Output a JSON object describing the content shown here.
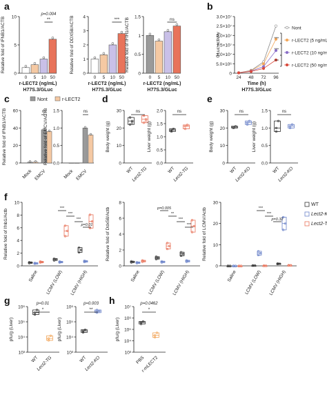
{
  "figure": {
    "panel_letters": [
      "a",
      "b",
      "c",
      "d",
      "e",
      "f",
      "g",
      "h"
    ]
  },
  "colors": {
    "white_fill": "#ffffff",
    "lavender": "#c9c0e8",
    "peach": "#f5c9a3",
    "orange_red": "#e8735a",
    "grey": "#9a9a9a",
    "blue_point": "#6a82c9",
    "red_point": "#d94a3c",
    "orange_point": "#f2a65a",
    "purple_point": "#8a6fc8",
    "box_red": "#e8735a",
    "box_blue": "#6a82c9",
    "box_orange": "#f2a65a"
  },
  "chart_data": [
    {
      "panel": "a",
      "type": "bar",
      "ylabel": "Relative fold of IFNB1/ACTB",
      "xlabel": "r-LECT2 (ng/mL)",
      "subtitle": "H77S.3/GLuc",
      "categories": [
        "0",
        "5",
        "10",
        "50"
      ],
      "values": [
        1.0,
        1.5,
        2.5,
        6.0
      ],
      "ylim": [
        0,
        10
      ],
      "yticks": [
        0,
        5,
        10
      ],
      "annotation_p": "p=0.004",
      "annotation_stars": "**"
    },
    {
      "panel": "a",
      "type": "bar",
      "ylabel": "Relative fold of DDX58/ACTB",
      "xlabel": "r-LECT2 (ng/mL)",
      "subtitle": "H77S.3/GLuc",
      "categories": [
        "0",
        "5",
        "10",
        "50"
      ],
      "values": [
        1.0,
        1.3,
        2.0,
        2.8
      ],
      "ylim": [
        0,
        4
      ],
      "yticks": [
        0,
        1,
        2,
        3,
        4
      ],
      "annotation_stars": "***"
    },
    {
      "panel": "a",
      "type": "bar",
      "ylabel": "Relative fold of IFIH1/ACTB",
      "xlabel": "r-LECT2 (ng/mL)",
      "subtitle": "H77S.3/GLuc",
      "categories": [
        "0",
        "5",
        "10",
        "50"
      ],
      "values": [
        1.0,
        0.85,
        1.1,
        1.25
      ],
      "ylim": [
        0,
        1.5
      ],
      "yticks": [
        0.0,
        0.5,
        1.0,
        1.5
      ],
      "annotation_stars": "ns"
    },
    {
      "panel": "b",
      "type": "line",
      "ylabel": "GLuc activity",
      "xlabel": "Time (h)",
      "subtitle": "H77S.3/GLuc",
      "x": [
        24,
        48,
        72,
        96
      ],
      "yticks_labels": [
        "0",
        "5.0×10⁶",
        "1.0×10⁷",
        "1.5×10⁷",
        "2.0×10⁷",
        "2.5×10⁷",
        "3.0×10⁷"
      ],
      "ylim": [
        0,
        30000000
      ],
      "series": [
        {
          "name": "Nont",
          "values": [
            200000,
            1500000,
            6000000,
            25000000
          ]
        },
        {
          "name": "r-LECT2 (5 ng/mL)",
          "values": [
            200000,
            1300000,
            5000000,
            18000000
          ]
        },
        {
          "name": "r-LECT2 (10 ng/mL)",
          "values": [
            200000,
            1100000,
            3500000,
            12000000
          ]
        },
        {
          "name": "r-LECT2 (50 ng/mL)",
          "values": [
            200000,
            900000,
            2500000,
            7000000
          ]
        }
      ],
      "annotation_stars": "***"
    },
    {
      "panel": "c",
      "type": "bar",
      "ylabel": "Relative fold of IFNB1/ACTB",
      "categories": [
        "Mock",
        "EMCV"
      ],
      "series": [
        {
          "name": "Nont",
          "values": [
            1.0,
            38
          ]
        },
        {
          "name": "r-LECT2",
          "values": [
            1.0,
            36
          ]
        }
      ],
      "ylim": [
        0,
        60
      ],
      "yticks": [
        0,
        20,
        40,
        60
      ],
      "annotation_stars": "ns"
    },
    {
      "panel": "c",
      "type": "bar",
      "ylabel": "Relative fold of EMCV/ACTB",
      "categories": [
        "Mock",
        "EMCV"
      ],
      "series": [
        {
          "name": "Nont",
          "values": [
            0,
            1.0
          ]
        },
        {
          "name": "r-LECT2",
          "values": [
            0,
            0.8
          ]
        }
      ],
      "ylim": [
        0,
        1.5
      ],
      "yticks": [
        0.0,
        0.5,
        1.0,
        1.5
      ],
      "annotation_stars": "ns"
    },
    {
      "panel": "d",
      "type": "box",
      "ylabel": "Body weight (g)",
      "categories": [
        "WT",
        "Lect2-TG"
      ],
      "values": [
        [
          22,
          24,
          26,
          23
        ],
        [
          23,
          25,
          27,
          24
        ]
      ],
      "ylim": [
        0,
        30
      ],
      "yticks": [
        0,
        10,
        20,
        30
      ],
      "annotation_stars": "ns"
    },
    {
      "panel": "d",
      "type": "box",
      "ylabel": "Liver weight (g)",
      "categories": [
        "WT",
        "Lect2-TG"
      ],
      "values": [
        [
          1.2,
          1.3,
          1.25
        ],
        [
          1.3,
          1.45,
          1.4
        ]
      ],
      "ylim": [
        0.0,
        2.0
      ],
      "yticks": [
        0.0,
        0.5,
        1.0,
        1.5,
        2.0
      ],
      "annotation_stars": "ns"
    },
    {
      "panel": "e",
      "type": "box",
      "ylabel": "Body weight (g)",
      "categories": [
        "WT",
        "Lect2-KO"
      ],
      "values": [
        [
          20,
          21,
          20.5
        ],
        [
          22,
          24,
          23
        ]
      ],
      "ylim": [
        0,
        30
      ],
      "yticks": [
        0,
        10,
        20,
        30
      ],
      "annotation_stars": "ns"
    },
    {
      "panel": "e",
      "type": "box",
      "ylabel": "Liver weight (g)",
      "categories": [
        "WT",
        "Lect2-KO"
      ],
      "values": [
        [
          0.9,
          1.2,
          1.0
        ],
        [
          1.0,
          1.1,
          1.05
        ]
      ],
      "ylim": [
        0.0,
        1.5
      ],
      "yticks": [
        0.0,
        0.5,
        1.0,
        1.5
      ],
      "annotation_stars": "ns"
    },
    {
      "panel": "f",
      "type": "box",
      "ylabel": "Relative fold of Ifnb1/Actb",
      "groups": [
        "Saline",
        "LCMV (LOW)",
        "LCMV (HIGH)"
      ],
      "series": [
        {
          "name": "WT",
          "values": [
            0.5,
            1.0,
            2.5
          ]
        },
        {
          "name": "Lect2-KO",
          "values": [
            0.4,
            0.6,
            0.7
          ]
        },
        {
          "name": "Lect2-TG",
          "values": [
            0.6,
            5.5,
            7.0
          ]
        }
      ],
      "ylim": [
        0,
        10
      ],
      "yticks": [
        0,
        2,
        4,
        6,
        8,
        10
      ],
      "annotations": [
        "***",
        "***",
        "***",
        "p=0.01"
      ]
    },
    {
      "panel": "f",
      "type": "box",
      "ylabel": "Relative fold of Ddx58/Actb",
      "groups": [
        "Saline",
        "LCMV (LOW)",
        "LCMV (HIGH)"
      ],
      "series": [
        {
          "name": "WT",
          "values": [
            0.5,
            1.0,
            1.5
          ]
        },
        {
          "name": "Lect2-KO",
          "values": [
            0.4,
            0.5,
            0.6
          ]
        },
        {
          "name": "Lect2-TG",
          "values": [
            0.6,
            2.5,
            5.0
          ]
        }
      ],
      "ylim": [
        0,
        8
      ],
      "yticks": [
        0,
        2,
        4,
        6,
        8
      ],
      "annotations": [
        "p=0.005",
        "**",
        "***",
        "***"
      ]
    },
    {
      "panel": "f",
      "type": "box",
      "ylabel": "Relative fold of LCMV/Actb",
      "groups": [
        "Saline",
        "LCMV (LOW)",
        "LCMV (HIGH)"
      ],
      "series": [
        {
          "name": "WT",
          "values": [
            0,
            0.2,
            1.0
          ]
        },
        {
          "name": "Lect2-KO",
          "values": [
            0,
            6.0,
            20.0
          ]
        },
        {
          "name": "Lect2-TG",
          "values": [
            0,
            0.1,
            0.3
          ]
        }
      ],
      "ylim": [
        0,
        30
      ],
      "yticks": [
        0,
        10,
        20,
        30
      ],
      "annotations": [
        "***",
        "***",
        "p=0.32"
      ]
    },
    {
      "panel": "g",
      "type": "box",
      "ylabel": "pfu/g (Liver)",
      "categories": [
        "WT",
        "Lect2-TG"
      ],
      "values": [
        [
          400000,
          600000,
          300000
        ],
        [
          8000,
          12000,
          6000
        ]
      ],
      "yscale": "log",
      "yticks_labels": [
        "10³",
        "10⁴",
        "10⁵",
        "10⁶"
      ],
      "annotation_p": "p=0.01",
      "annotation_stars": "*"
    },
    {
      "panel": "g",
      "type": "box",
      "ylabel": "pfu/g (Liver)",
      "categories": [
        "WT",
        "Lect2-KO"
      ],
      "values": [
        [
          20000,
          30000,
          25000
        ],
        [
          400000,
          500000,
          600000
        ]
      ],
      "yscale": "log",
      "yticks_labels": [
        "10³",
        "10⁴",
        "10⁵",
        "10⁶"
      ],
      "annotation_p": "p=0.003",
      "annotation_stars": "**"
    },
    {
      "panel": "h",
      "type": "box",
      "ylabel": "pfu/g (Liver)",
      "categories": [
        "PBS",
        "r-mLECT2"
      ],
      "values": [
        [
          300000,
          500000,
          400000
        ],
        [
          20000,
          50000,
          30000
        ]
      ],
      "yscale": "log",
      "yticks_labels": [
        "10³",
        "10⁴",
        "10⁵",
        "10⁶",
        "10⁷"
      ],
      "annotation_p": "p=0.0462",
      "annotation_stars": "*"
    }
  ],
  "legend_b": [
    "Nont",
    "r-LECT2 (5 ng/mL)",
    "r-LECT2 (10 ng/mL)",
    "r-LECT2 (50 ng/mL)"
  ],
  "legend_c": [
    "Nont",
    "r-LECT2"
  ],
  "legend_f": [
    "WT",
    "Lect2-KO",
    "Lect2-TG"
  ]
}
